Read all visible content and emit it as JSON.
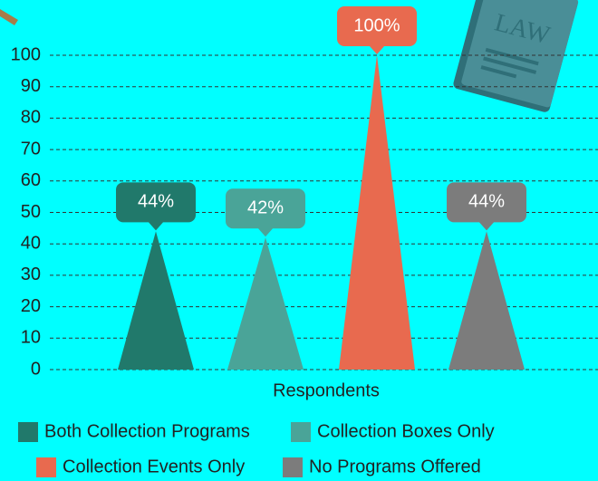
{
  "chart_data": {
    "type": "triangle-bar",
    "categories": [
      "Respondents"
    ],
    "series": [
      {
        "name": "Both Collection Programs",
        "color": "#21796b",
        "values": [
          44
        ],
        "value_labels": [
          "44%"
        ]
      },
      {
        "name": "Collection Boxes Only",
        "color": "#4aa498",
        "values": [
          42
        ],
        "value_labels": [
          "42%"
        ]
      },
      {
        "name": "Collection Events Only",
        "color": "#e86a4f",
        "values": [
          100
        ],
        "value_labels": [
          "100%"
        ]
      },
      {
        "name": "No Programs Offered",
        "color": "#7c7c7c",
        "values": [
          44
        ],
        "value_labels": [
          "44%"
        ]
      }
    ],
    "ylim": [
      0,
      100
    ],
    "yticks": [
      0,
      10,
      20,
      30,
      40,
      50,
      60,
      70,
      80,
      90,
      100
    ],
    "grid": true
  }
}
